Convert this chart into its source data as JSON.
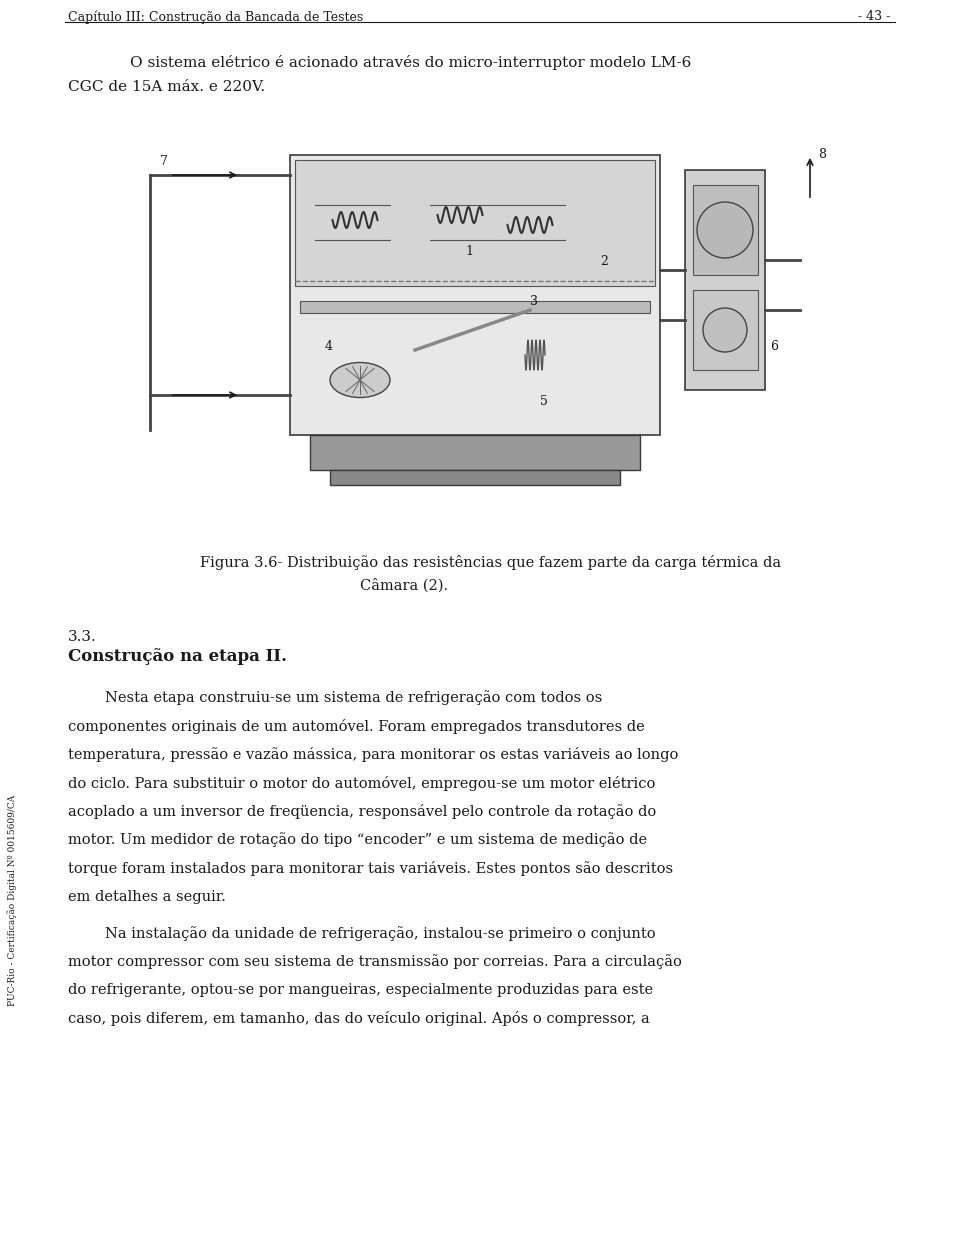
{
  "page_width": 9.6,
  "page_height": 12.57,
  "bg_color": "#ffffff",
  "text_color": "#1a1a1a",
  "header_text": "Capítulo III: Construção da Bancada de Testes",
  "header_right": "- 43 -",
  "sidebar_text": "PUC-Rio - Certificação Digital Nº 0015609/CA",
  "para1_line1": "O sistema elétrico é acionado através do micro-interruptor modelo LM-6",
  "para1_line2": "CGC de 15A máx. e 220V.",
  "fig_caption_line1": "Figura 3.6- Distribuição das resistências que fazem parte da carga térmica da",
  "fig_caption_line2": "Câmara (2).",
  "section_num": "3.3.",
  "section_title": "Construção na etapa II.",
  "body_paragraphs": [
    "        Nesta etapa construiu-se um sistema de refrigeração com todos os componentes originais de um automóvel. Foram empregados transdutores de temperatura, pressão e vazão mássica, para monitorar os estas variáveis ao longo do ciclo. Para substituir o motor do automóvel, empregou-se um motor elétrico acoplado a um inversor de freqüencia, responsável pelo controle da rotação do motor. Um medidor de rotação do tipo “encoder” e um sistema de medição de torque foram instalados para monitorar tais variáveis. Estes pontos são descritos em detalhes a seguir.",
    "        Na instalação da unidade de refrigeração, instalou-se primeiro o conjunto motor compressor com seu sistema de transmissão por correias. Para a circulação do refrigerante, optou-se por mangueiras, especialmente produzidas para este caso, pois diferem, em tamanho, das do veículo original. Após o compressor, a"
  ]
}
